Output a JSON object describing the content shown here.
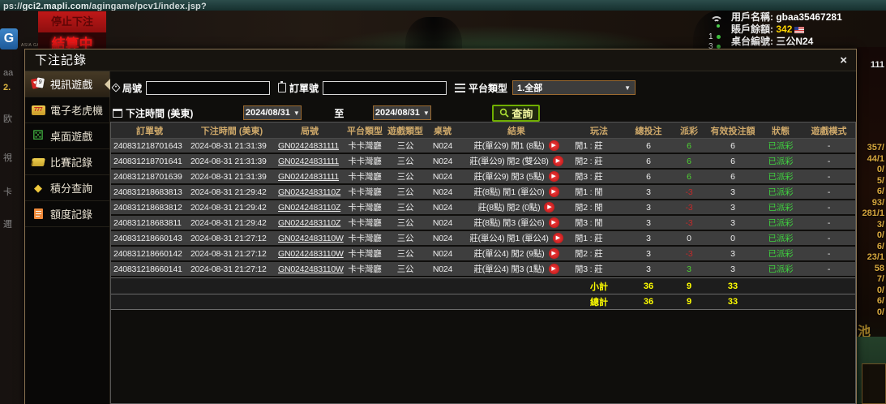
{
  "browser": {
    "url_prefix": "ps://",
    "url_host": "gci2.mapli.com",
    "url_path": "/agingame/pcv1/index.jsp?"
  },
  "background": {
    "logo_letter": "G",
    "logo_sub": "ASIA GAMING",
    "stop_betting": "停止下注",
    "settling": "結算中",
    "user": {
      "name_label": "用戶名稱:",
      "name": "gbaa35467281",
      "balance_label": "賬戶餘額:",
      "balance": "342",
      "table_label": "桌台編號:",
      "table": "三公N24",
      "indicator_1": "1",
      "indicator_2": "3"
    },
    "right_strip": [
      "111",
      "357/",
      "44/1",
      "0/",
      "5/",
      "6/",
      "93/",
      "281/1",
      "3/",
      "0/",
      "6/",
      "23/1",
      "58",
      "7/",
      "0/",
      "6/",
      "0/"
    ],
    "jackpot_char": "池",
    "left_fragments": [
      "aa",
      "2.",
      "欧",
      "視",
      "卡",
      "邇"
    ]
  },
  "modal": {
    "title": "下注記錄",
    "close": "×",
    "sidebar": [
      {
        "label": "視訊遊戲",
        "icon": "cards-icon",
        "active": true
      },
      {
        "label": "電子老虎機",
        "icon": "slot-777-icon",
        "active": false
      },
      {
        "label": "桌面遊戲",
        "icon": "dice-icon",
        "active": false
      },
      {
        "label": "比賽記錄",
        "icon": "ticket-icon",
        "active": false
      },
      {
        "label": "積分查詢",
        "icon": "diamond-icon",
        "active": false
      },
      {
        "label": "額度記錄",
        "icon": "document-icon",
        "active": false
      }
    ],
    "filters": {
      "round_label": "局號",
      "round_value": "",
      "order_label": "訂單號",
      "order_value": "",
      "platform_label": "平台類型",
      "platform_value": "1.全部",
      "time_label": "下注時間 (美東)",
      "date_from": "2024/08/31",
      "to_label": "至",
      "date_to": "2024/08/31",
      "search_label": "查詢"
    },
    "table": {
      "headers": [
        "訂單號",
        "下注時間 (美東)",
        "局號",
        "平台類型",
        "遊戲類型",
        "桌號",
        "結果",
        "玩法",
        "總投注",
        "派彩",
        "有效投注額",
        "狀態",
        "遊戲模式"
      ],
      "rows": [
        {
          "order": "240831218701643",
          "time": "2024-08-31 21:31:39",
          "round": "GN02424831111",
          "platform": "卡卡灣廳",
          "game": "三公",
          "table": "N024",
          "result": "莊(單公9) 閒1 (8點)",
          "method": "閒1 : 莊",
          "total": "6",
          "payout": "6",
          "payout_sign": "pos",
          "valid": "6",
          "status": "已派彩",
          "mode": "-"
        },
        {
          "order": "240831218701641",
          "time": "2024-08-31 21:31:39",
          "round": "GN02424831111",
          "platform": "卡卡灣廳",
          "game": "三公",
          "table": "N024",
          "result": "莊(單公9) 閒2 (雙公8)",
          "method": "閒2 : 莊",
          "total": "6",
          "payout": "6",
          "payout_sign": "pos",
          "valid": "6",
          "status": "已派彩",
          "mode": "-"
        },
        {
          "order": "240831218701639",
          "time": "2024-08-31 21:31:39",
          "round": "GN02424831111",
          "platform": "卡卡灣廳",
          "game": "三公",
          "table": "N024",
          "result": "莊(單公9) 閒3 (5點)",
          "method": "閒3 : 莊",
          "total": "6",
          "payout": "6",
          "payout_sign": "pos",
          "valid": "6",
          "status": "已派彩",
          "mode": "-"
        },
        {
          "order": "240831218683813",
          "time": "2024-08-31 21:29:42",
          "round": "GN0242483110Z",
          "platform": "卡卡灣廳",
          "game": "三公",
          "table": "N024",
          "result": "莊(8點) 閒1 (單公0)",
          "method": "閒1 : 閒",
          "total": "3",
          "payout": "-3",
          "payout_sign": "neg",
          "valid": "3",
          "status": "已派彩",
          "mode": "-"
        },
        {
          "order": "240831218683812",
          "time": "2024-08-31 21:29:42",
          "round": "GN0242483110Z",
          "platform": "卡卡灣廳",
          "game": "三公",
          "table": "N024",
          "result": "莊(8點) 閒2 (0點)",
          "method": "閒2 : 閒",
          "total": "3",
          "payout": "-3",
          "payout_sign": "neg",
          "valid": "3",
          "status": "已派彩",
          "mode": "-"
        },
        {
          "order": "240831218683811",
          "time": "2024-08-31 21:29:42",
          "round": "GN0242483110Z",
          "platform": "卡卡灣廳",
          "game": "三公",
          "table": "N024",
          "result": "莊(8點) 閒3 (單公6)",
          "method": "閒3 : 閒",
          "total": "3",
          "payout": "-3",
          "payout_sign": "neg",
          "valid": "3",
          "status": "已派彩",
          "mode": "-"
        },
        {
          "order": "240831218660143",
          "time": "2024-08-31 21:27:12",
          "round": "GN0242483110W",
          "platform": "卡卡灣廳",
          "game": "三公",
          "table": "N024",
          "result": "莊(單公4) 閒1 (單公4)",
          "method": "閒1 : 莊",
          "total": "3",
          "payout": "0",
          "payout_sign": "zero",
          "valid": "0",
          "status": "已派彩",
          "mode": "-"
        },
        {
          "order": "240831218660142",
          "time": "2024-08-31 21:27:12",
          "round": "GN0242483110W",
          "platform": "卡卡灣廳",
          "game": "三公",
          "table": "N024",
          "result": "莊(單公4) 閒2 (9點)",
          "method": "閒2 : 莊",
          "total": "3",
          "payout": "-3",
          "payout_sign": "neg",
          "valid": "3",
          "status": "已派彩",
          "mode": "-"
        },
        {
          "order": "240831218660141",
          "time": "2024-08-31 21:27:12",
          "round": "GN0242483110W",
          "platform": "卡卡灣廳",
          "game": "三公",
          "table": "N024",
          "result": "莊(單公4) 閒3 (1點)",
          "method": "閒3 : 莊",
          "total": "3",
          "payout": "3",
          "payout_sign": "pos",
          "valid": "3",
          "status": "已派彩",
          "mode": "-"
        }
      ],
      "subtotal": {
        "label": "小計",
        "total": "36",
        "payout": "9",
        "valid": "33"
      },
      "grand_total": {
        "label": "總計",
        "total": "36",
        "payout": "9",
        "valid": "33"
      }
    },
    "colors": {
      "accent_gold": "#cfa96a",
      "win_green": "#4ed432",
      "lose_red": "#c22a2a",
      "status_green": "#3fd43f",
      "sum_yellow": "#ffff00"
    }
  }
}
